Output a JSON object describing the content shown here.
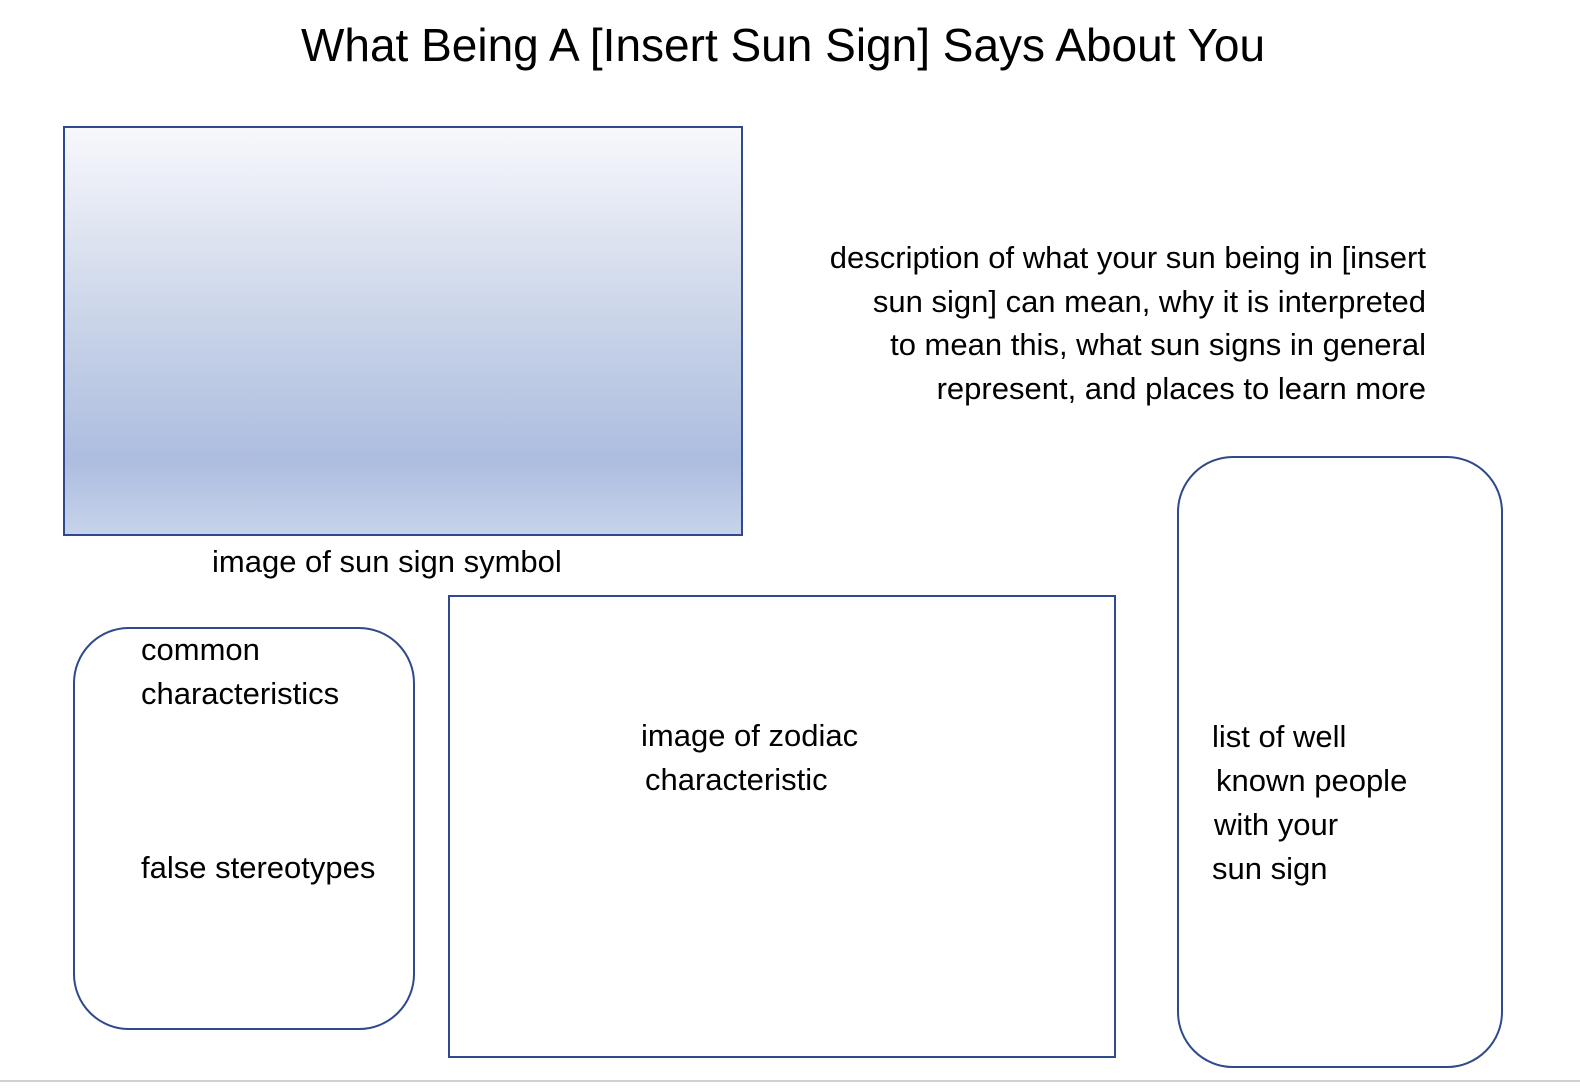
{
  "title": "What Being A [Insert Sun Sign] Says About You",
  "symbol_caption": "image of sun sign symbol",
  "description_lines": [
    "description of what your sun being in [insert",
    "sun sign] can mean, why it is interpreted",
    "to mean this, what sun signs in general",
    "represent, and places to learn more"
  ],
  "characteristics_box": {
    "heading_lines": [
      "common",
      "characteristics"
    ],
    "stereotypes": "false stereotypes"
  },
  "zodiac_box": {
    "lines": [
      "image of zodiac",
      "characteristic"
    ]
  },
  "people_box": {
    "lines": [
      "list of well",
      "known people",
      "with your",
      "sun sign"
    ]
  },
  "colors": {
    "border": "#2e4a8c",
    "gradient_top": "#f7f8fc",
    "gradient_mid": "#adbde0"
  }
}
